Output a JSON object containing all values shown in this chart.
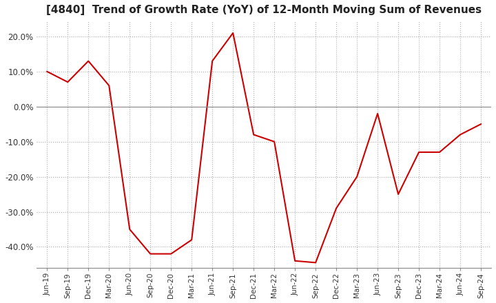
{
  "title": "[4840]  Trend of Growth Rate (YoY) of 12-Month Moving Sum of Revenues",
  "title_fontsize": 11,
  "line_color": "#cc0000",
  "background_color": "#ffffff",
  "grid_color": "#aaaaaa",
  "zero_line_color": "#888888",
  "ylim": [
    -0.46,
    0.245
  ],
  "yticks": [
    -0.4,
    -0.3,
    -0.2,
    -0.1,
    0.0,
    0.1,
    0.2
  ],
  "x_labels": [
    "Jun-19",
    "Sep-19",
    "Dec-19",
    "Mar-20",
    "Jun-20",
    "Sep-20",
    "Dec-20",
    "Mar-21",
    "Jun-21",
    "Sep-21",
    "Dec-21",
    "Mar-22",
    "Jun-22",
    "Sep-22",
    "Dec-22",
    "Mar-23",
    "Jun-23",
    "Sep-23",
    "Dec-23",
    "Mar-24",
    "Jun-24",
    "Sep-24"
  ],
  "values": [
    0.1,
    0.07,
    0.13,
    0.06,
    -0.35,
    -0.42,
    -0.42,
    -0.38,
    0.13,
    0.21,
    -0.08,
    -0.1,
    -0.44,
    -0.445,
    -0.29,
    -0.2,
    -0.02,
    -0.25,
    -0.13,
    -0.13,
    -0.08,
    -0.05
  ]
}
